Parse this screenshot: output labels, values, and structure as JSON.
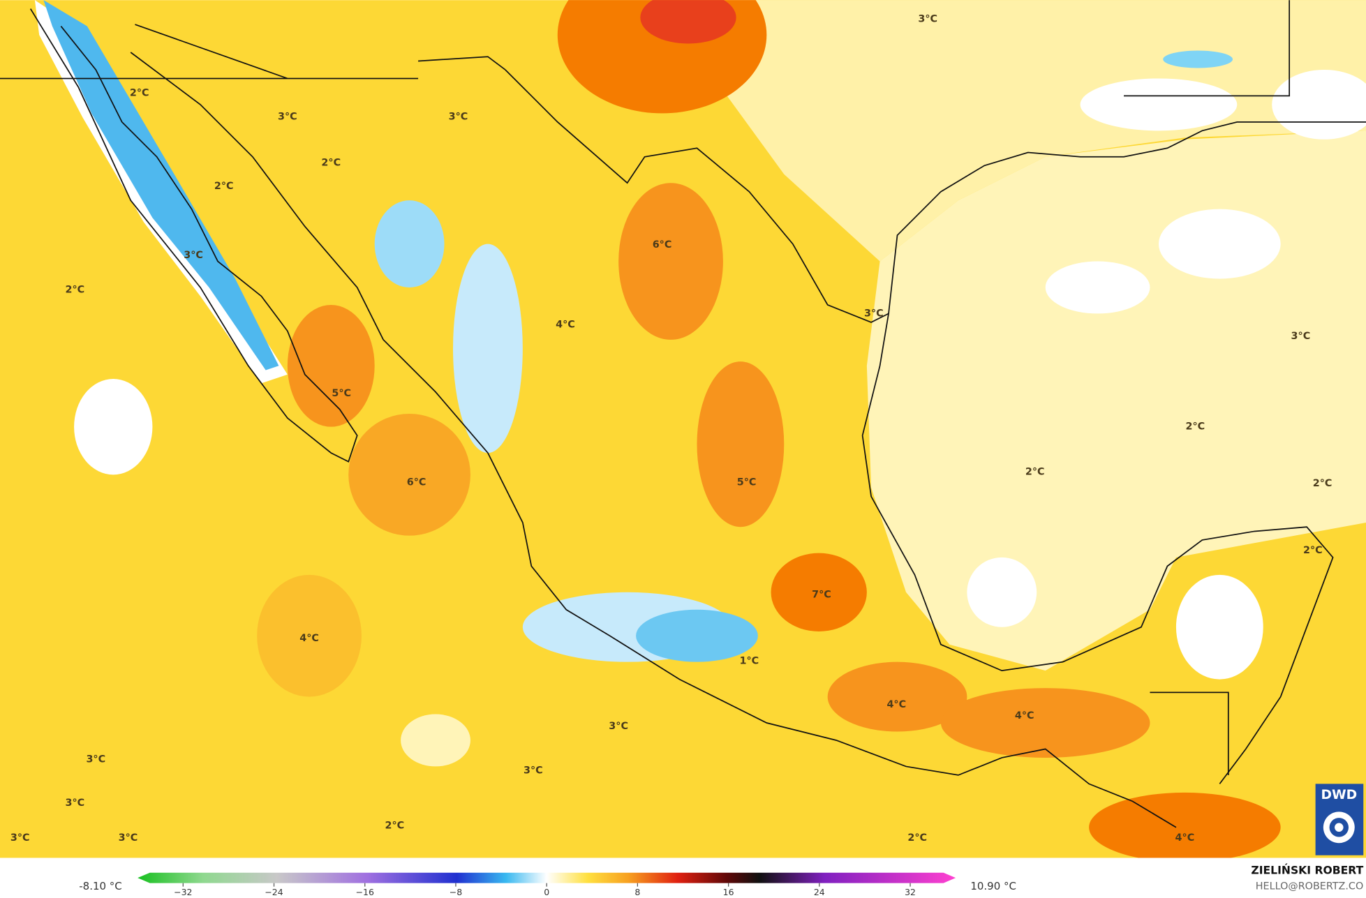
{
  "map": {
    "labels": [
      "3°C",
      "2°C",
      "3°C",
      "3°C",
      "2°C",
      "2°C",
      "3°C",
      "2°C",
      "6°C",
      "3°C",
      "4°C",
      "3°C",
      "5°C",
      "2°C",
      "2°C",
      "6°C",
      "5°C",
      "2°C",
      "2°C",
      "7°C",
      "4°C",
      "1°C",
      "4°C",
      "4°C",
      "3°C",
      "3°C",
      "3°C",
      "3°C",
      "2°C",
      "3°C",
      "3°C",
      "2°C",
      "4°C"
    ]
  },
  "colorbar": {
    "min_label": "-8.10 °C",
    "max_label": "10.90 °C",
    "lim": [
      -36,
      36
    ],
    "ticks": [
      {
        "value": -32,
        "label": "−32"
      },
      {
        "value": -24,
        "label": "−24"
      },
      {
        "value": -16,
        "label": "−16"
      },
      {
        "value": -8,
        "label": "−8"
      },
      0,
      8,
      16,
      24,
      32
    ]
  },
  "credit": {
    "author": "ZIELIŃSKI ROBERT",
    "contact": "HELLO@ROBERTZ.CO"
  },
  "logo": "DWD"
}
